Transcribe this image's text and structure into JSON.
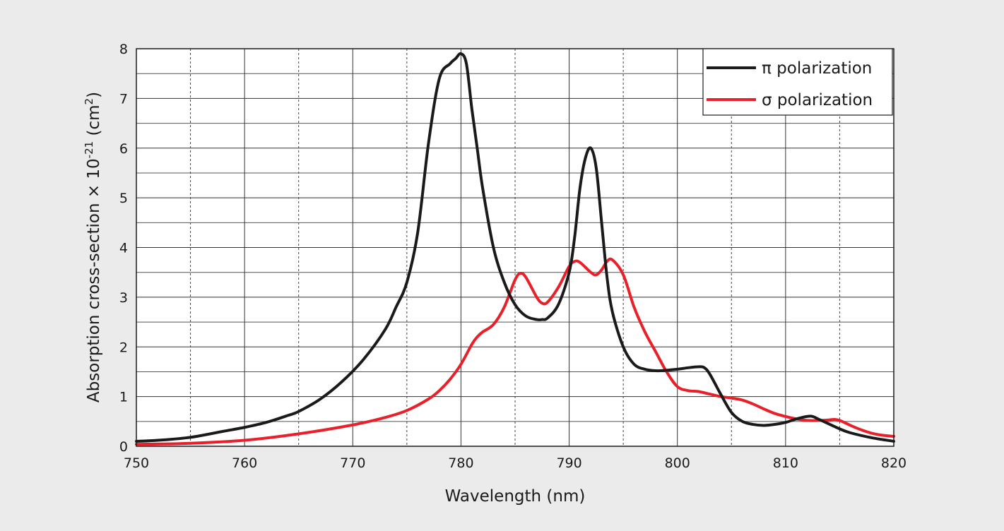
{
  "chart_data": {
    "type": "line",
    "title": "",
    "xlabel": "Wavelength (nm)",
    "ylabel_prefix": "Absorption cross-section × 10",
    "ylabel_exp": "-21",
    "ylabel_unit_open": " (cm",
    "ylabel_unit_exp": "2",
    "ylabel_unit_close": ")",
    "xlim": [
      750,
      820
    ],
    "ylim": [
      0,
      8
    ],
    "xticks": [
      750,
      760,
      770,
      780,
      790,
      800,
      810,
      820
    ],
    "yticks": [
      0,
      1,
      2,
      3,
      4,
      5,
      6,
      7,
      8
    ],
    "x_minor_dashed": [
      755,
      765,
      775,
      785,
      795,
      805,
      815
    ],
    "y_minor": [
      0.5,
      1.5,
      2.5,
      3.5,
      4.5,
      5.5,
      6.5,
      7.5
    ],
    "grid": true,
    "legend_position": "top-right",
    "series": [
      {
        "name": "π polarization",
        "color": "#1a1a1a",
        "x": [
          750,
          752,
          755,
          758,
          760,
          762,
          764,
          765,
          767,
          769,
          771,
          773,
          774,
          775,
          776,
          777,
          778,
          779,
          779.5,
          780,
          780.5,
          781,
          781.5,
          782,
          783,
          784,
          785,
          786,
          787,
          787.5,
          788,
          789,
          790,
          790.5,
          791,
          791.5,
          792,
          792.5,
          793,
          793.5,
          794,
          795,
          796,
          797,
          798,
          799,
          800,
          801,
          802,
          802.5,
          803,
          804,
          805,
          806,
          807,
          808,
          809,
          810,
          811,
          812,
          812.5,
          813,
          814,
          815,
          816,
          818,
          820
        ],
        "y": [
          0.1,
          0.12,
          0.18,
          0.3,
          0.38,
          0.48,
          0.62,
          0.7,
          0.95,
          1.3,
          1.75,
          2.35,
          2.8,
          3.3,
          4.3,
          6.1,
          7.4,
          7.7,
          7.8,
          7.9,
          7.7,
          6.8,
          6.0,
          5.2,
          4.0,
          3.3,
          2.85,
          2.62,
          2.55,
          2.55,
          2.58,
          2.85,
          3.5,
          4.2,
          5.2,
          5.8,
          6.0,
          5.6,
          4.5,
          3.4,
          2.7,
          2.0,
          1.65,
          1.55,
          1.52,
          1.53,
          1.55,
          1.58,
          1.6,
          1.58,
          1.45,
          1.05,
          0.68,
          0.5,
          0.44,
          0.42,
          0.44,
          0.48,
          0.55,
          0.6,
          0.6,
          0.55,
          0.45,
          0.35,
          0.27,
          0.17,
          0.1
        ]
      },
      {
        "name": "σ polarization",
        "color": "#e8202a",
        "x": [
          750,
          755,
          760,
          765,
          770,
          773,
          775,
          777,
          778,
          779,
          780,
          781,
          781.5,
          782,
          783,
          784,
          785,
          785.5,
          786,
          787,
          787.5,
          788,
          789,
          790,
          790.5,
          791,
          792,
          792.5,
          793,
          793.5,
          794,
          795,
          796,
          797,
          798,
          799,
          800,
          801,
          802,
          803,
          804,
          805,
          806,
          807,
          808,
          809,
          810,
          811,
          812,
          813,
          814,
          814.5,
          815,
          816,
          817,
          818,
          819,
          820
        ],
        "y": [
          0.04,
          0.06,
          0.12,
          0.25,
          0.43,
          0.58,
          0.72,
          0.95,
          1.12,
          1.35,
          1.65,
          2.05,
          2.2,
          2.3,
          2.45,
          2.8,
          3.35,
          3.48,
          3.4,
          3.0,
          2.88,
          2.9,
          3.2,
          3.62,
          3.72,
          3.7,
          3.5,
          3.45,
          3.55,
          3.72,
          3.75,
          3.45,
          2.8,
          2.3,
          1.9,
          1.5,
          1.2,
          1.12,
          1.1,
          1.05,
          1.0,
          0.97,
          0.93,
          0.85,
          0.75,
          0.66,
          0.6,
          0.55,
          0.52,
          0.52,
          0.53,
          0.54,
          0.52,
          0.42,
          0.33,
          0.26,
          0.22,
          0.2
        ]
      }
    ]
  }
}
